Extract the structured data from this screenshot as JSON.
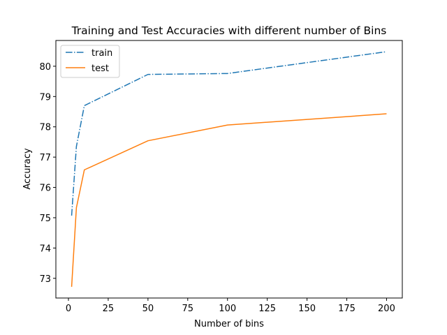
{
  "chart_data": {
    "type": "line",
    "title": "Training and Test Accuracies with different number of Bins",
    "xlabel": "Number of bins",
    "ylabel": "Accuracy",
    "xlim": [
      -7.9,
      209.9
    ],
    "ylim": [
      72.35,
      80.85
    ],
    "xticks": [
      0,
      25,
      50,
      75,
      100,
      125,
      150,
      175,
      200
    ],
    "yticks": [
      73,
      74,
      75,
      76,
      77,
      78,
      79,
      80
    ],
    "grid": false,
    "legend_position": "upper-left",
    "x": [
      2,
      5,
      10,
      50,
      100,
      200
    ],
    "series": [
      {
        "name": "train",
        "values": [
          75.07,
          77.35,
          78.7,
          79.73,
          79.76,
          80.48
        ],
        "color": "#1f77b4",
        "linestyle": "dashdot"
      },
      {
        "name": "test",
        "values": [
          72.72,
          75.33,
          76.58,
          77.54,
          78.06,
          78.43
        ],
        "color": "#ff7f0e",
        "linestyle": "solid"
      }
    ]
  }
}
